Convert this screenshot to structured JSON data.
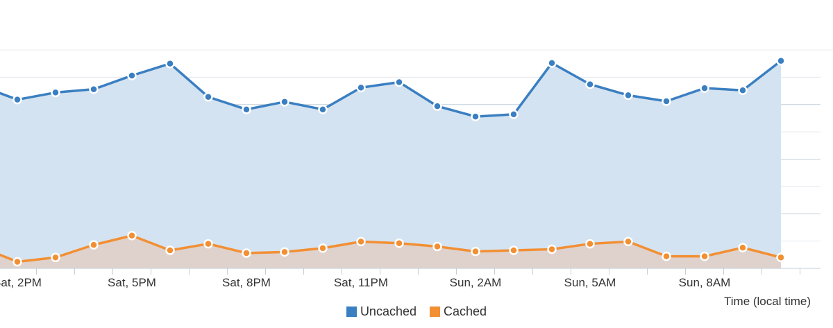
{
  "chart_data": {
    "type": "area",
    "x": [
      "Sat, 1PM",
      "Sat, 2PM",
      "Sat, 3PM",
      "Sat, 4PM",
      "Sat, 5PM",
      "Sat, 6PM",
      "Sat, 7PM",
      "Sat, 8PM",
      "Sat, 9PM",
      "Sat, 10PM",
      "Sat, 11PM",
      "Sun, 12AM",
      "Sun, 1AM",
      "Sun, 2AM",
      "Sun, 3AM",
      "Sun, 4AM",
      "Sun, 5AM",
      "Sun, 6AM",
      "Sun, 7AM",
      "Sun, 8AM",
      "Sun, 9AM",
      "Sun, 10AM"
    ],
    "x_tick_labels": [
      "Sat, 2PM",
      "Sat, 5PM",
      "Sat, 8PM",
      "Sat, 11PM",
      "Sun, 2AM",
      "Sun, 5AM",
      "Sun, 8AM"
    ],
    "series": [
      {
        "name": "Uncached",
        "color": "#3a7fc1",
        "fill": "#d4e3f1",
        "values": [
          335,
          309,
          322,
          328,
          353,
          375,
          314,
          291,
          305,
          291,
          331,
          341,
          297,
          278,
          282,
          376,
          337,
          317,
          306,
          330,
          326,
          380
        ]
      },
      {
        "name": "Cached",
        "color": "#f28f33",
        "fill": "#dfd2cd",
        "values": [
          40,
          12,
          20,
          43,
          60,
          33,
          45,
          28,
          30,
          37,
          49,
          46,
          40,
          31,
          33,
          35,
          45,
          49,
          22,
          22,
          38,
          20
        ]
      }
    ],
    "ylim": [
      0,
      400
    ],
    "grid": true,
    "xlabel": "Time (local time)",
    "ylabel": "",
    "legend": "bottom-center"
  }
}
